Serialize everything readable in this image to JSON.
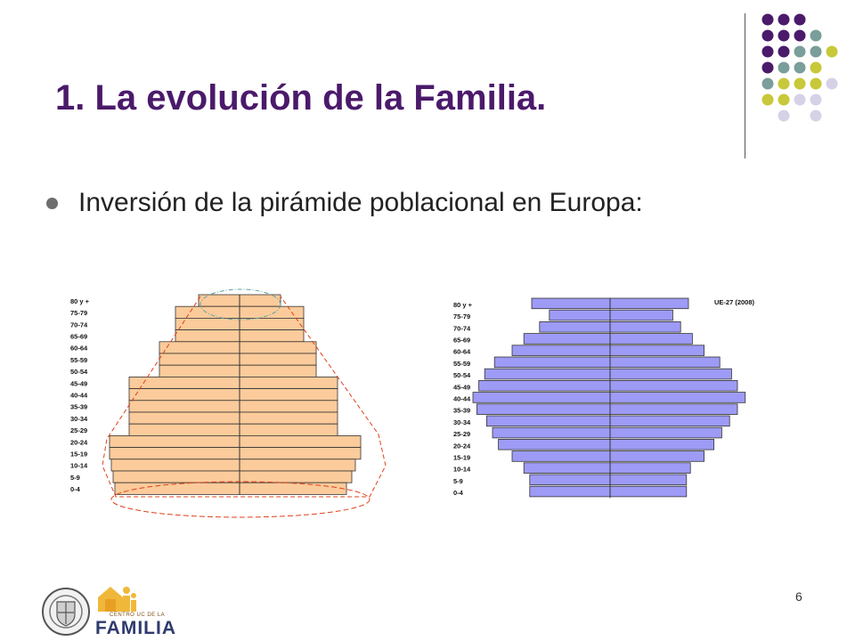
{
  "slide": {
    "title": "1. La evolución de la Familia.",
    "bullet": "Inversión de la pirámide poblacional en Europa:",
    "page_number": "6"
  },
  "colors": {
    "title": "#4b1a6b",
    "pyramid_left_fill": "#fccb9b",
    "pyramid_right_fill": "#9d9bf5",
    "outline_ellipse": "#5aa0a0",
    "outline_dashed": "#e0401a",
    "dot_purple": "#4b1a6b",
    "dot_teal": "#7a9e9a",
    "dot_yellow": "#c8c83a",
    "dot_lavender": "#d5d2e8"
  },
  "logo": {
    "small_text": "CENTRO UC DE LA",
    "big_text": "FAMILIA"
  },
  "chart_data": [
    {
      "type": "bar",
      "orientation": "horizontal-pyramid",
      "categories": [
        "80 y +",
        "75-79",
        "70-74",
        "65-69",
        "60-64",
        "55-59",
        "50-54",
        "45-49",
        "40-44",
        "35-39",
        "30-34",
        "25-29",
        "20-24",
        "15-19",
        "10-14",
        "5-9",
        "0-4"
      ],
      "series": [
        {
          "values": [
            2.3,
            3.6,
            3.6,
            3.6,
            4.5,
            4.5,
            4.5,
            6.2,
            6.2,
            6.2,
            6.2,
            6.2,
            7.3,
            7.3,
            7.2,
            7.1,
            7.0
          ]
        },
        {
          "values": [
            2.3,
            3.6,
            3.6,
            3.6,
            4.3,
            4.3,
            4.3,
            5.5,
            5.5,
            5.5,
            5.5,
            5.5,
            6.8,
            6.8,
            6.5,
            6.3,
            6.0
          ]
        }
      ],
      "annotations": [
        "ellipse-top",
        "ellipse-bottom",
        "dashed-outline"
      ]
    },
    {
      "type": "bar",
      "orientation": "horizontal-pyramid",
      "title": "UE-27 (2008)",
      "categories": [
        "80 y +",
        "75-79",
        "70-74",
        "65-69",
        "60-64",
        "55-59",
        "50-54",
        "45-49",
        "40-44",
        "35-39",
        "30-34",
        "25-29",
        "20-24",
        "15-19",
        "10-14",
        "5-9",
        "0-4"
      ],
      "series": [
        {
          "values": [
            4.0,
            3.1,
            3.6,
            4.4,
            5.0,
            5.9,
            6.4,
            6.7,
            7.0,
            6.8,
            6.3,
            6.0,
            5.7,
            5.0,
            4.4,
            4.1,
            4.1
          ]
        },
        {
          "values": [
            4.0,
            3.2,
            3.6,
            4.2,
            4.8,
            5.6,
            6.2,
            6.5,
            6.9,
            6.5,
            6.1,
            5.7,
            5.3,
            4.8,
            4.1,
            3.9,
            3.9
          ]
        }
      ]
    }
  ]
}
